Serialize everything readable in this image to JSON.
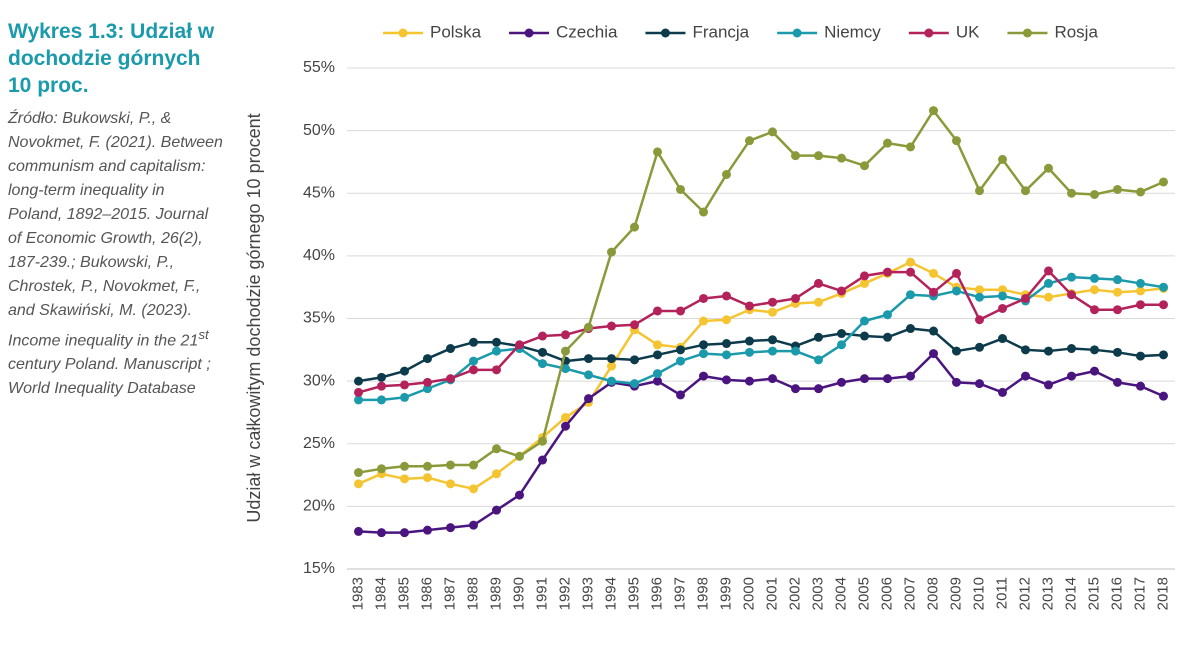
{
  "chart_data": {
    "type": "line",
    "title": "Wykres 1.3: Udział w dochodzie górnych 10 proc.",
    "source": {
      "main": "Źródło: Bukowski, P., & Novokmet, F. (2021). Between communism and capitalism: long-term inequality in Poland, 1892–2015. Journal of Economic Growth, 26(2), 187-239.; Bukowski, P., Chrostek, P., Novokmet, F., and Skawiński, M. (2023). Income inequality in the 21",
      "sup": "st",
      "end": " century Poland. Manuscript ; World Inequality Database"
    },
    "y_label": "Udział w całkowitym dochodzie górnego 10 procent",
    "categories": [
      "1983",
      "1984",
      "1985",
      "1986",
      "1987",
      "1988",
      "1989",
      "1990",
      "1991",
      "1992",
      "1993",
      "1994",
      "1995",
      "1996",
      "1997",
      "1998",
      "1999",
      "2000",
      "2001",
      "2002",
      "2003",
      "2004",
      "2005",
      "2006",
      "2007",
      "2008",
      "2009",
      "2010",
      "2011",
      "2012",
      "2013",
      "2014",
      "2015",
      "2016",
      "2017",
      "2018"
    ],
    "ylim": [
      15,
      55
    ],
    "yticks": [
      {
        "value": 15,
        "label": "15%"
      },
      {
        "value": 20,
        "label": "20%"
      },
      {
        "value": 25,
        "label": "25%"
      },
      {
        "value": 30,
        "label": "30%"
      },
      {
        "value": 35,
        "label": "35%"
      },
      {
        "value": 40,
        "label": "40%"
      },
      {
        "value": 45,
        "label": "45%"
      },
      {
        "value": 50,
        "label": "50%"
      },
      {
        "value": 55,
        "label": "55%"
      }
    ],
    "grid": true,
    "legend": "top",
    "series": [
      {
        "name": "Polska",
        "color": "#f5c431",
        "values": [
          21.8,
          22.6,
          22.2,
          22.3,
          21.8,
          21.4,
          22.6,
          24.0,
          25.5,
          27.1,
          28.3,
          31.2,
          34.1,
          32.9,
          32.7,
          34.8,
          34.9,
          35.7,
          35.5,
          36.2,
          36.3,
          37.0,
          37.8,
          38.6,
          39.5,
          38.6,
          37.5,
          37.3,
          37.3,
          36.9,
          36.7,
          37.0,
          37.3,
          37.1,
          37.2,
          37.4
        ]
      },
      {
        "name": "Czechia",
        "color": "#4b1580",
        "values": [
          18.0,
          17.9,
          17.9,
          18.1,
          18.3,
          18.5,
          19.7,
          20.9,
          23.7,
          26.4,
          28.6,
          29.9,
          29.6,
          30.0,
          28.9,
          30.4,
          30.1,
          30.0,
          30.2,
          29.4,
          29.4,
          29.9,
          30.2,
          30.2,
          30.4,
          32.2,
          29.9,
          29.8,
          29.1,
          30.4,
          29.7,
          30.4,
          30.8,
          29.9,
          29.6,
          28.8
        ]
      },
      {
        "name": "Francja",
        "color": "#0d3b4b",
        "values": [
          30.0,
          30.3,
          30.8,
          31.8,
          32.6,
          33.1,
          33.1,
          32.8,
          32.3,
          31.6,
          31.8,
          31.8,
          31.7,
          32.1,
          32.5,
          32.9,
          33.0,
          33.2,
          33.3,
          32.8,
          33.5,
          33.8,
          33.6,
          33.5,
          34.2,
          34.0,
          32.4,
          32.7,
          33.4,
          32.5,
          32.4,
          32.6,
          32.5,
          32.3,
          32.0,
          32.1
        ]
      },
      {
        "name": "Niemcy",
        "color": "#1b9aab",
        "values": [
          28.5,
          28.5,
          28.7,
          29.4,
          30.1,
          31.6,
          32.4,
          32.6,
          31.4,
          31.0,
          30.5,
          30.0,
          29.8,
          30.6,
          31.6,
          32.2,
          32.1,
          32.3,
          32.4,
          32.4,
          31.7,
          32.9,
          34.8,
          35.3,
          36.9,
          36.8,
          37.2,
          36.7,
          36.8,
          36.4,
          37.8,
          38.3,
          38.2,
          38.1,
          37.8,
          37.5
        ]
      },
      {
        "name": "UK",
        "color": "#b3225a",
        "values": [
          29.1,
          29.6,
          29.7,
          29.9,
          30.2,
          30.9,
          30.9,
          32.9,
          33.6,
          33.7,
          34.2,
          34.4,
          34.5,
          35.6,
          35.6,
          36.6,
          36.8,
          36.0,
          36.3,
          36.6,
          37.8,
          37.2,
          38.4,
          38.7,
          38.7,
          37.1,
          38.6,
          34.9,
          35.8,
          36.6,
          38.8,
          36.9,
          35.7,
          35.7,
          36.1,
          36.1
        ]
      },
      {
        "name": "Rosja",
        "color": "#8a9a3a",
        "values": [
          22.7,
          23.0,
          23.2,
          23.2,
          23.3,
          23.3,
          24.6,
          24.0,
          25.2,
          32.4,
          34.3,
          40.3,
          42.3,
          48.3,
          45.3,
          43.5,
          46.5,
          49.2,
          49.9,
          48.0,
          48.0,
          47.8,
          47.2,
          49.0,
          48.7,
          51.6,
          49.2,
          45.2,
          47.7,
          45.2,
          47.0,
          45.0,
          44.9,
          45.3,
          45.1,
          45.9
        ]
      }
    ]
  }
}
